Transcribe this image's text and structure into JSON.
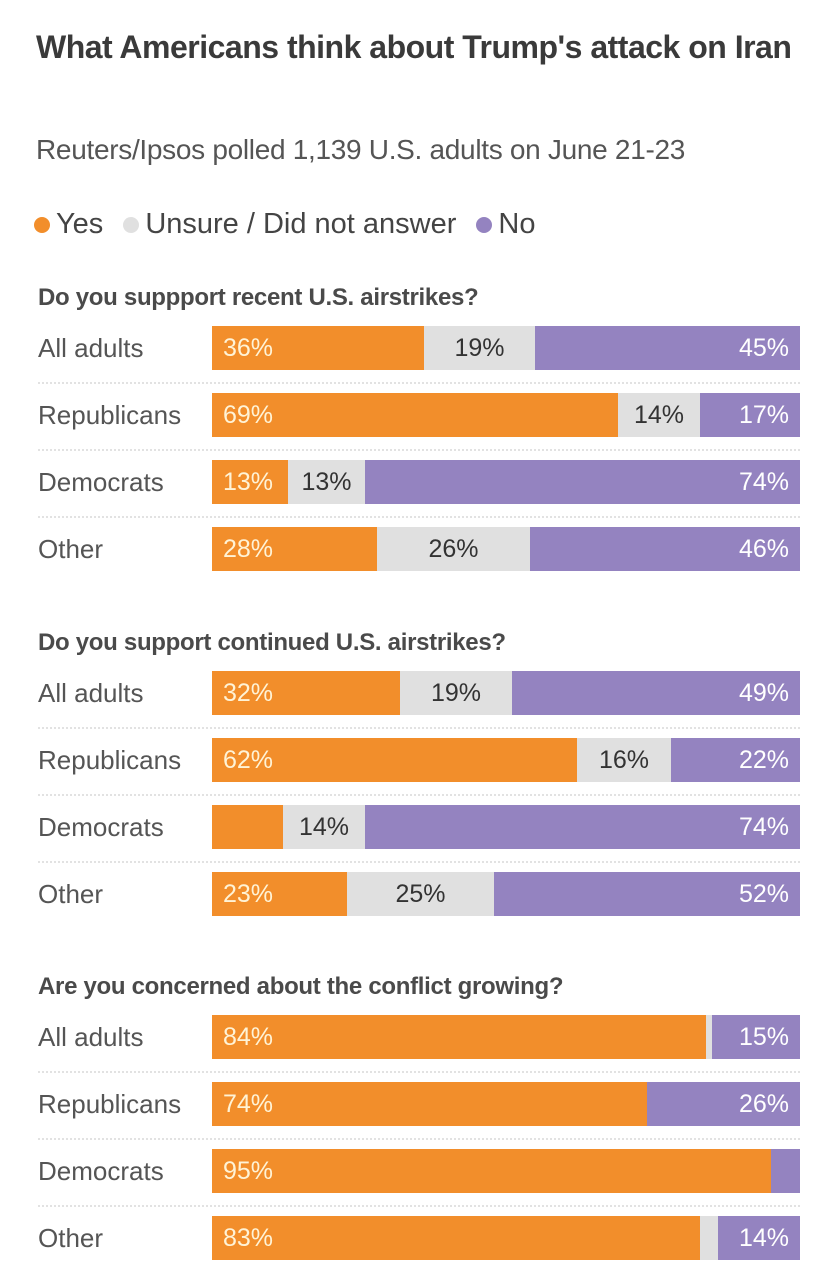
{
  "title": "What Americans think about Trump's attack on Iran",
  "subtitle": "Reuters/Ipsos polled 1,139 U.S. adults on June 21-23",
  "colors": {
    "yes": "#f28e2b",
    "unsure": "#e0e0e0",
    "no": "#9483c0"
  },
  "legend": [
    {
      "key": "yes",
      "label": "Yes"
    },
    {
      "key": "unsure",
      "label": "Unsure / Did not answer"
    },
    {
      "key": "no",
      "label": "No"
    }
  ],
  "chart_data": [
    {
      "type": "bar",
      "stacked": true,
      "orientation": "horizontal",
      "title": "Do you suppport recent U.S. airstrikes?",
      "categories": [
        "All adults",
        "Republicans",
        "Democrats",
        "Other"
      ],
      "series": [
        {
          "name": "Yes",
          "values": [
            36,
            69,
            13,
            28
          ],
          "labels": [
            "36%",
            "69%",
            "13%",
            "28%"
          ]
        },
        {
          "name": "Unsure / Did not answer",
          "values": [
            19,
            14,
            13,
            26
          ],
          "labels": [
            "19%",
            "14%",
            "13%",
            "26%"
          ]
        },
        {
          "name": "No",
          "values": [
            45,
            17,
            74,
            46
          ],
          "labels": [
            "45%",
            "17%",
            "74%",
            "46%"
          ]
        }
      ],
      "xlim": [
        0,
        100
      ]
    },
    {
      "type": "bar",
      "stacked": true,
      "orientation": "horizontal",
      "title": "Do you support continued U.S. airstrikes?",
      "categories": [
        "All adults",
        "Republicans",
        "Democrats",
        "Other"
      ],
      "series": [
        {
          "name": "Yes",
          "values": [
            32,
            62,
            12,
            23
          ],
          "labels": [
            "32%",
            "62%",
            "",
            "23%"
          ]
        },
        {
          "name": "Unsure / Did not answer",
          "values": [
            19,
            16,
            14,
            25
          ],
          "labels": [
            "19%",
            "16%",
            "14%",
            "25%"
          ]
        },
        {
          "name": "No",
          "values": [
            49,
            22,
            74,
            52
          ],
          "labels": [
            "49%",
            "22%",
            "74%",
            "52%"
          ]
        }
      ],
      "xlim": [
        0,
        100
      ]
    },
    {
      "type": "bar",
      "stacked": true,
      "orientation": "horizontal",
      "title": "Are you concerned about the conflict growing?",
      "categories": [
        "All adults",
        "Republicans",
        "Democrats",
        "Other"
      ],
      "series": [
        {
          "name": "Yes",
          "values": [
            84,
            74,
            95,
            83
          ],
          "labels": [
            "84%",
            "74%",
            "95%",
            "83%"
          ]
        },
        {
          "name": "Unsure / Did not answer",
          "values": [
            1,
            0,
            0,
            3
          ],
          "labels": [
            "",
            "",
            "",
            ""
          ]
        },
        {
          "name": "No",
          "values": [
            15,
            26,
            5,
            14
          ],
          "labels": [
            "15%",
            "26%",
            "",
            "14%"
          ]
        }
      ],
      "xlim": [
        0,
        100
      ]
    }
  ]
}
